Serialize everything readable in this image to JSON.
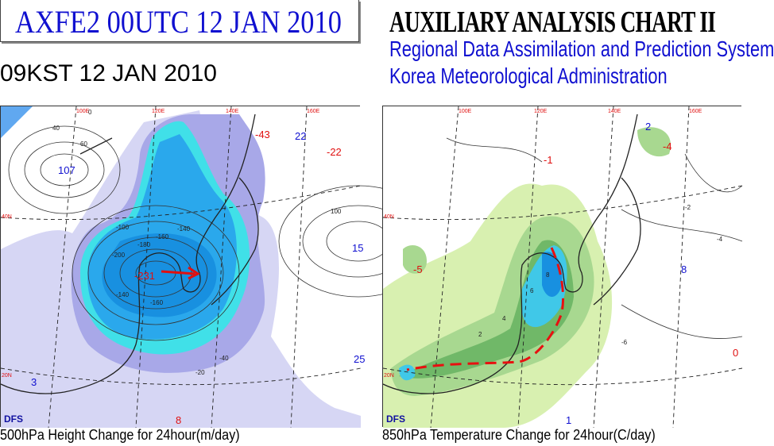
{
  "header": {
    "code_title": "AXFE2  00UTC 12 JAN 2010",
    "local_time": "09KST 12 JAN 2010",
    "chart_title": "AUXILIARY ANALYSIS CHART II",
    "system": "Regional Data Assimilation and Prediction System",
    "agency": "Korea Meteorological Administration"
  },
  "panels": [
    {
      "caption": "500hPa Height Change for 24hour(m/day)",
      "logo": "DFS",
      "lon_labels": [
        "100E",
        "120E",
        "140E",
        "160E"
      ],
      "lat_labels": [
        "40N",
        "20N"
      ],
      "extrema": [
        {
          "label": "107",
          "kind": "rise"
        },
        {
          "label": "-231",
          "kind": "fall"
        },
        {
          "label": "-43",
          "kind": "fall"
        },
        {
          "label": "22",
          "kind": "rise"
        },
        {
          "label": "-22",
          "kind": "fall"
        },
        {
          "label": "3",
          "kind": "rise"
        },
        {
          "label": "15",
          "kind": "rise"
        },
        {
          "label": "25",
          "kind": "rise"
        },
        {
          "label": "8",
          "kind": "fall"
        }
      ],
      "contour_labels": [
        "-100",
        "-140",
        "-160",
        "-180",
        "-200",
        "-160",
        "-140",
        "-40",
        "-20",
        "0",
        "40",
        "60",
        "100"
      ]
    },
    {
      "caption": "850hPa Temperature Change for 24hour(C/day)",
      "logo": "DFS",
      "lon_labels": [
        "100E",
        "120E",
        "140E",
        "160E"
      ],
      "lat_labels": [
        "40N",
        "20N"
      ],
      "extrema": [
        {
          "label": "-5",
          "kind": "fall"
        },
        {
          "label": "-1",
          "kind": "fall"
        },
        {
          "label": "-4",
          "kind": "fall"
        },
        {
          "label": "8",
          "kind": "rise"
        },
        {
          "label": "1",
          "kind": "rise"
        },
        {
          "label": "2",
          "kind": "rise"
        },
        {
          "label": "0",
          "kind": "fall"
        }
      ],
      "contour_labels": [
        "2",
        "4",
        "6",
        "8",
        "-2",
        "-4",
        "-6"
      ]
    }
  ],
  "colors": {
    "title_blue": "#1010d0",
    "fall_red": "#e01010",
    "rise_blue": "#1010d0",
    "shade_light": "#c8c8f0",
    "shade_mid": "#a8a8e8",
    "shade_cyan": "#40e0e8",
    "shade_blue": "#2090e8",
    "green_light": "#d8f0b0",
    "green_mid": "#a8d890",
    "green_dark": "#70b868"
  }
}
